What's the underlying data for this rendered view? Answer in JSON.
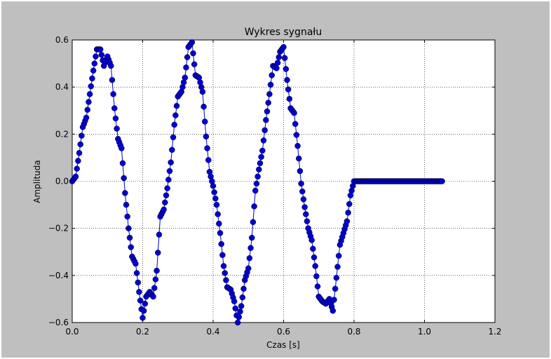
{
  "chart_data": {
    "type": "line",
    "title": "Wykres sygnału",
    "xlabel": "Czas [s]",
    "ylabel": "Amplituda",
    "xlim": [
      0.0,
      1.2
    ],
    "ylim": [
      -0.6,
      0.6
    ],
    "xticks": [
      "0.0",
      "0.2",
      "0.4",
      "0.6",
      "0.8",
      "1.0",
      "1.2"
    ],
    "yticks": [
      "−0.6",
      "−0.4",
      "−0.2",
      "0.0",
      "0.2",
      "0.4",
      "0.6"
    ],
    "grid": true,
    "marker": "circle",
    "colors": {
      "series": "#0000cc",
      "background": "#bfbfbf",
      "plot": "#ffffff"
    },
    "series": [
      {
        "x": [
          0.0,
          0.01,
          0.02,
          0.03,
          0.04,
          0.05,
          0.06,
          0.07,
          0.08,
          0.09,
          0.1,
          0.11,
          0.12,
          0.13,
          0.14,
          0.15,
          0.16,
          0.17,
          0.18,
          0.19,
          0.2,
          0.21,
          0.22,
          0.23,
          0.24,
          0.25,
          0.26,
          0.27,
          0.28,
          0.29,
          0.3,
          0.31,
          0.32,
          0.33,
          0.34,
          0.35,
          0.36,
          0.37,
          0.38,
          0.39,
          0.4,
          0.41,
          0.42,
          0.43,
          0.44,
          0.45,
          0.46,
          0.47,
          0.48,
          0.49,
          0.5,
          0.51,
          0.52,
          0.53,
          0.54,
          0.55,
          0.56,
          0.57,
          0.58,
          0.59,
          0.6,
          0.61,
          0.62,
          0.63,
          0.64,
          0.65,
          0.66,
          0.67,
          0.68,
          0.69,
          0.7,
          0.71,
          0.72,
          0.73,
          0.74,
          0.75,
          0.76,
          0.77,
          0.78,
          0.79,
          0.8,
          0.81,
          0.82,
          0.83,
          0.84,
          0.85,
          0.86,
          0.87,
          0.88,
          0.89,
          0.9,
          0.91,
          0.92,
          0.93,
          0.94,
          0.95,
          0.96,
          0.97,
          0.98,
          0.99,
          1.0,
          1.01,
          1.02,
          1.03,
          1.04,
          1.05
        ],
        "y": [
          0.0,
          0.02,
          0.12,
          0.23,
          0.27,
          0.37,
          0.47,
          0.56,
          0.56,
          0.49,
          0.53,
          0.49,
          0.31,
          0.18,
          0.14,
          -0.05,
          -0.2,
          -0.32,
          -0.35,
          -0.47,
          -0.58,
          -0.49,
          -0.47,
          -0.49,
          -0.38,
          -0.15,
          -0.12,
          -0.03,
          0.08,
          0.24,
          0.36,
          0.38,
          0.44,
          0.57,
          0.59,
          0.45,
          0.44,
          0.38,
          0.19,
          0.04,
          -0.02,
          -0.1,
          -0.22,
          -0.36,
          -0.45,
          -0.46,
          -0.51,
          -0.6,
          -0.53,
          -0.42,
          -0.37,
          -0.24,
          -0.04,
          0.05,
          0.13,
          0.26,
          0.37,
          0.49,
          0.48,
          0.55,
          0.57,
          0.43,
          0.31,
          0.29,
          0.15,
          -0.01,
          -0.11,
          -0.2,
          -0.25,
          -0.36,
          -0.49,
          -0.51,
          -0.52,
          -0.5,
          -0.55,
          -0.41,
          -0.27,
          -0.22,
          -0.17,
          -0.06,
          0.0,
          0.0,
          0.0,
          0.0,
          0.0,
          0.0,
          0.0,
          0.0,
          0.0,
          0.0,
          0.0,
          0.0,
          0.0,
          0.0,
          0.0,
          0.0,
          0.0,
          0.0,
          0.0,
          0.0,
          0.0,
          0.0,
          0.0,
          0.0,
          0.0,
          0.0
        ]
      }
    ]
  }
}
